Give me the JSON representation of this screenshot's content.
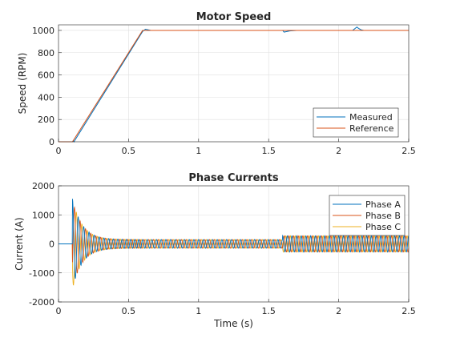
{
  "chart_data": [
    {
      "type": "line",
      "title": "Motor Speed",
      "xlabel": "",
      "ylabel": "Speed (RPM)",
      "xlim": [
        0,
        2.5
      ],
      "ylim": [
        0,
        1050
      ],
      "xticks": [
        0,
        0.5,
        1,
        1.5,
        2,
        2.5
      ],
      "xtick_labels": [
        "0",
        "0.5",
        "1",
        "1.5",
        "2",
        "2.5"
      ],
      "yticks": [
        0,
        200,
        400,
        600,
        800,
        1000
      ],
      "ytick_labels": [
        "0",
        "200",
        "400",
        "600",
        "800",
        "1000"
      ],
      "grid": true,
      "legend_position": "bottom-right",
      "series": [
        {
          "name": "Measured",
          "color": "#0072BD",
          "x": [
            0,
            0.1,
            0.105,
            0.11,
            0.6,
            0.62,
            0.64,
            0.66,
            1.6,
            1.61,
            1.63,
            1.65,
            1.7,
            2.1,
            2.12,
            2.13,
            2.14,
            2.16,
            2.18,
            2.5
          ],
          "y": [
            0,
            0,
            10,
            0,
            990,
            1010,
            1005,
            1000,
            1000,
            985,
            990,
            995,
            1000,
            1000,
            1020,
            1030,
            1020,
            1005,
            1000,
            1000
          ]
        },
        {
          "name": "Reference",
          "color": "#D95319",
          "x": [
            0,
            0.1,
            0.6,
            0.63,
            2.5
          ],
          "y": [
            0,
            0,
            1000,
            1000,
            1000
          ]
        }
      ]
    },
    {
      "type": "line",
      "title": "Phase Currents",
      "xlabel": "Time (s)",
      "ylabel": "Current (A)",
      "xlim": [
        0,
        2.5
      ],
      "ylim": [
        -2000,
        2000
      ],
      "xticks": [
        0,
        0.5,
        1,
        1.5,
        2,
        2.5
      ],
      "xtick_labels": [
        "0",
        "0.5",
        "1",
        "1.5",
        "2",
        "2.5"
      ],
      "yticks": [
        -2000,
        -1000,
        0,
        1000,
        2000
      ],
      "ytick_labels": [
        "-2000",
        "-1000",
        "0",
        "1000",
        "2000"
      ],
      "grid": true,
      "legend_position": "top-right",
      "series": [
        {
          "name": "Phase A",
          "color": "#0072BD"
        },
        {
          "name": "Phase B",
          "color": "#D95319"
        },
        {
          "name": "Phase C",
          "color": "#EDB120"
        }
      ],
      "signal_description": {
        "start_time": 0.1,
        "initial_peak": 1550,
        "initial_trough": -1400,
        "steady_amplitude_before_1_6": 150,
        "step_time": 1.6,
        "steady_amplitude_after_1_6": 280
      }
    }
  ]
}
